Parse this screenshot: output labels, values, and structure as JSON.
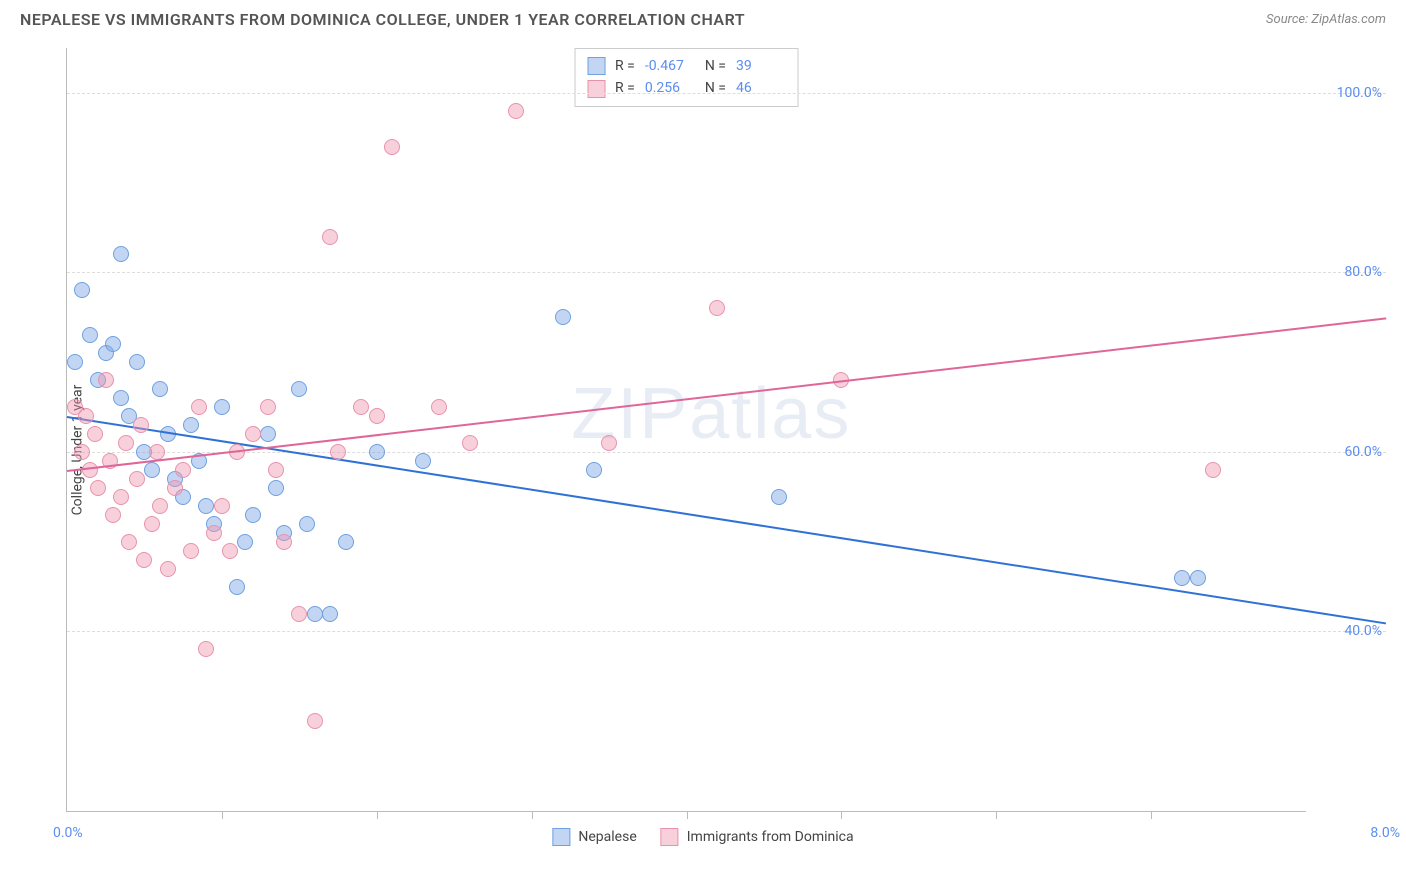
{
  "title": "NEPALESE VS IMMIGRANTS FROM DOMINICA COLLEGE, UNDER 1 YEAR CORRELATION CHART",
  "source": "Source: ZipAtlas.com",
  "ylabel": "College, Under 1 year",
  "watermark": "ZIPatlas",
  "chart": {
    "type": "scatter",
    "xlim": [
      0,
      8
    ],
    "ylim": [
      20,
      105
    ],
    "x_min_label": "0.0%",
    "x_max_label": "8.0%",
    "xtick_positions": [
      1,
      2,
      3,
      4,
      5,
      6,
      7
    ],
    "y_gridlines": [
      40,
      60,
      80,
      100
    ],
    "y_labels": [
      "40.0%",
      "60.0%",
      "80.0%",
      "100.0%"
    ],
    "background_color": "#ffffff",
    "grid_color": "#dddddd",
    "axis_color": "#bbbbbb",
    "label_color": "#5b8def",
    "marker_radius": 8,
    "marker_opacity": 0.55,
    "series": [
      {
        "name": "Nepalese",
        "color_fill": "rgba(120,165,230,0.45)",
        "color_stroke": "#6fa0e0",
        "trend_color": "#2f72d6",
        "trend": {
          "x1": 0,
          "y1": 64,
          "x2": 8,
          "y2": 41
        },
        "R": "-0.467",
        "N": "39",
        "points": [
          [
            0.05,
            70
          ],
          [
            0.1,
            78
          ],
          [
            0.15,
            73
          ],
          [
            0.2,
            68
          ],
          [
            0.25,
            71
          ],
          [
            0.3,
            72
          ],
          [
            0.35,
            82
          ],
          [
            0.35,
            66
          ],
          [
            0.4,
            64
          ],
          [
            0.45,
            70
          ],
          [
            0.5,
            60
          ],
          [
            0.55,
            58
          ],
          [
            0.6,
            67
          ],
          [
            0.65,
            62
          ],
          [
            0.7,
            57
          ],
          [
            0.75,
            55
          ],
          [
            0.8,
            63
          ],
          [
            0.85,
            59
          ],
          [
            0.9,
            54
          ],
          [
            0.95,
            52
          ],
          [
            1.0,
            65
          ],
          [
            1.1,
            45
          ],
          [
            1.15,
            50
          ],
          [
            1.2,
            53
          ],
          [
            1.3,
            62
          ],
          [
            1.35,
            56
          ],
          [
            1.4,
            51
          ],
          [
            1.5,
            67
          ],
          [
            1.55,
            52
          ],
          [
            1.6,
            42
          ],
          [
            1.7,
            42
          ],
          [
            1.8,
            50
          ],
          [
            2.0,
            60
          ],
          [
            2.3,
            59
          ],
          [
            3.2,
            75
          ],
          [
            3.4,
            58
          ],
          [
            4.6,
            55
          ],
          [
            7.2,
            46
          ],
          [
            7.3,
            46
          ]
        ]
      },
      {
        "name": "Immigrants from Dominica",
        "color_fill": "rgba(240,150,175,0.45)",
        "color_stroke": "#e893ac",
        "trend_color": "#e06698",
        "trend": {
          "x1": 0,
          "y1": 58,
          "x2": 8,
          "y2": 75
        },
        "R": "0.256",
        "N": "46",
        "points": [
          [
            0.05,
            65
          ],
          [
            0.1,
            60
          ],
          [
            0.12,
            64
          ],
          [
            0.15,
            58
          ],
          [
            0.18,
            62
          ],
          [
            0.2,
            56
          ],
          [
            0.25,
            68
          ],
          [
            0.28,
            59
          ],
          [
            0.3,
            53
          ],
          [
            0.35,
            55
          ],
          [
            0.38,
            61
          ],
          [
            0.4,
            50
          ],
          [
            0.45,
            57
          ],
          [
            0.48,
            63
          ],
          [
            0.5,
            48
          ],
          [
            0.55,
            52
          ],
          [
            0.58,
            60
          ],
          [
            0.6,
            54
          ],
          [
            0.65,
            47
          ],
          [
            0.7,
            56
          ],
          [
            0.75,
            58
          ],
          [
            0.8,
            49
          ],
          [
            0.85,
            65
          ],
          [
            0.9,
            38
          ],
          [
            0.95,
            51
          ],
          [
            1.0,
            54
          ],
          [
            1.05,
            49
          ],
          [
            1.1,
            60
          ],
          [
            1.2,
            62
          ],
          [
            1.3,
            65
          ],
          [
            1.35,
            58
          ],
          [
            1.4,
            50
          ],
          [
            1.5,
            42
          ],
          [
            1.6,
            30
          ],
          [
            1.7,
            84
          ],
          [
            1.75,
            60
          ],
          [
            1.9,
            65
          ],
          [
            2.0,
            64
          ],
          [
            2.1,
            94
          ],
          [
            2.4,
            65
          ],
          [
            2.6,
            61
          ],
          [
            2.9,
            98
          ],
          [
            3.5,
            61
          ],
          [
            4.2,
            76
          ],
          [
            5.0,
            68
          ],
          [
            7.4,
            58
          ]
        ]
      }
    ]
  },
  "legend_bottom": [
    {
      "label": "Nepalese",
      "fill": "rgba(120,165,230,0.45)",
      "stroke": "#6fa0e0"
    },
    {
      "label": "Immigrants from Dominica",
      "fill": "rgba(240,150,175,0.45)",
      "stroke": "#e893ac"
    }
  ]
}
